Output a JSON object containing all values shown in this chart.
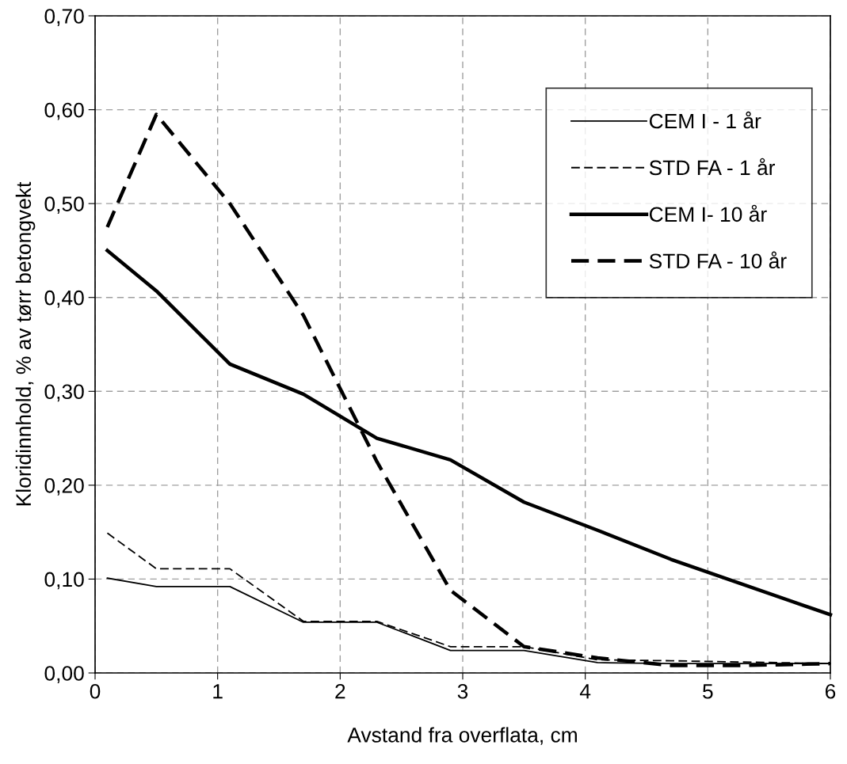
{
  "chart_data": {
    "type": "line",
    "xlabel": "Avstand fra overflata, cm",
    "ylabel": "Kloridinnhold, % av tørr betongvekt",
    "xlim": [
      0,
      6
    ],
    "xticks": [
      0,
      1,
      2,
      3,
      4,
      5,
      6
    ],
    "ylim": [
      0,
      0.7
    ],
    "yticks": [
      {
        "value": 0,
        "label": "0,00"
      },
      {
        "value": 0.1,
        "label": "0,10"
      },
      {
        "value": 0.2,
        "label": "0,20"
      },
      {
        "value": 0.3,
        "label": "0,30"
      },
      {
        "value": 0.4,
        "label": "0,40"
      },
      {
        "value": 0.5,
        "label": "0,50"
      },
      {
        "value": 0.6,
        "label": "0,60"
      },
      {
        "value": 0.7,
        "label": "0,70"
      }
    ],
    "grid": true,
    "legend": "top right",
    "marker": "none",
    "series": [
      {
        "name": "CEM I - 1 år",
        "color": "#000000",
        "line_style": "solid",
        "x": [
          0.1,
          0.5,
          1.1,
          1.7,
          2.3,
          2.9,
          3.5,
          4.1,
          4.7,
          6
        ],
        "values": [
          0.101,
          0.092,
          0.092,
          0.054,
          0.054,
          0.024,
          0.024,
          0.011,
          0.01,
          0.01
        ]
      },
      {
        "name": "STD FA - 1 år",
        "color": "#000000",
        "line_style": "dashed",
        "x": [
          0.1,
          0.5,
          1.1,
          1.7,
          2.3,
          2.9,
          3.5,
          4.1,
          4.7,
          6
        ],
        "values": [
          0.149,
          0.111,
          0.111,
          0.055,
          0.055,
          0.028,
          0.028,
          0.014,
          0.013,
          0.01
        ]
      },
      {
        "name": "CEM I- 10 år",
        "color": "#000000",
        "line_style": "solid",
        "x": [
          0.1,
          0.5,
          1.1,
          1.7,
          2.3,
          2.9,
          3.5,
          4.1,
          4.7,
          6
        ],
        "values": [
          0.45,
          0.407,
          0.329,
          0.297,
          0.25,
          0.227,
          0.182,
          0.152,
          0.121,
          0.062
        ]
      },
      {
        "name": "STD FA - 10 år",
        "color": "#000000",
        "line_style": "dashed",
        "x": [
          0.1,
          0.5,
          1.1,
          1.7,
          2.3,
          2.9,
          3.5,
          4.1,
          4.7,
          5.3,
          6
        ],
        "values": [
          0.475,
          0.595,
          0.5,
          0.381,
          0.225,
          0.088,
          0.028,
          0.016,
          0.008,
          0.008,
          0.01
        ]
      }
    ]
  }
}
